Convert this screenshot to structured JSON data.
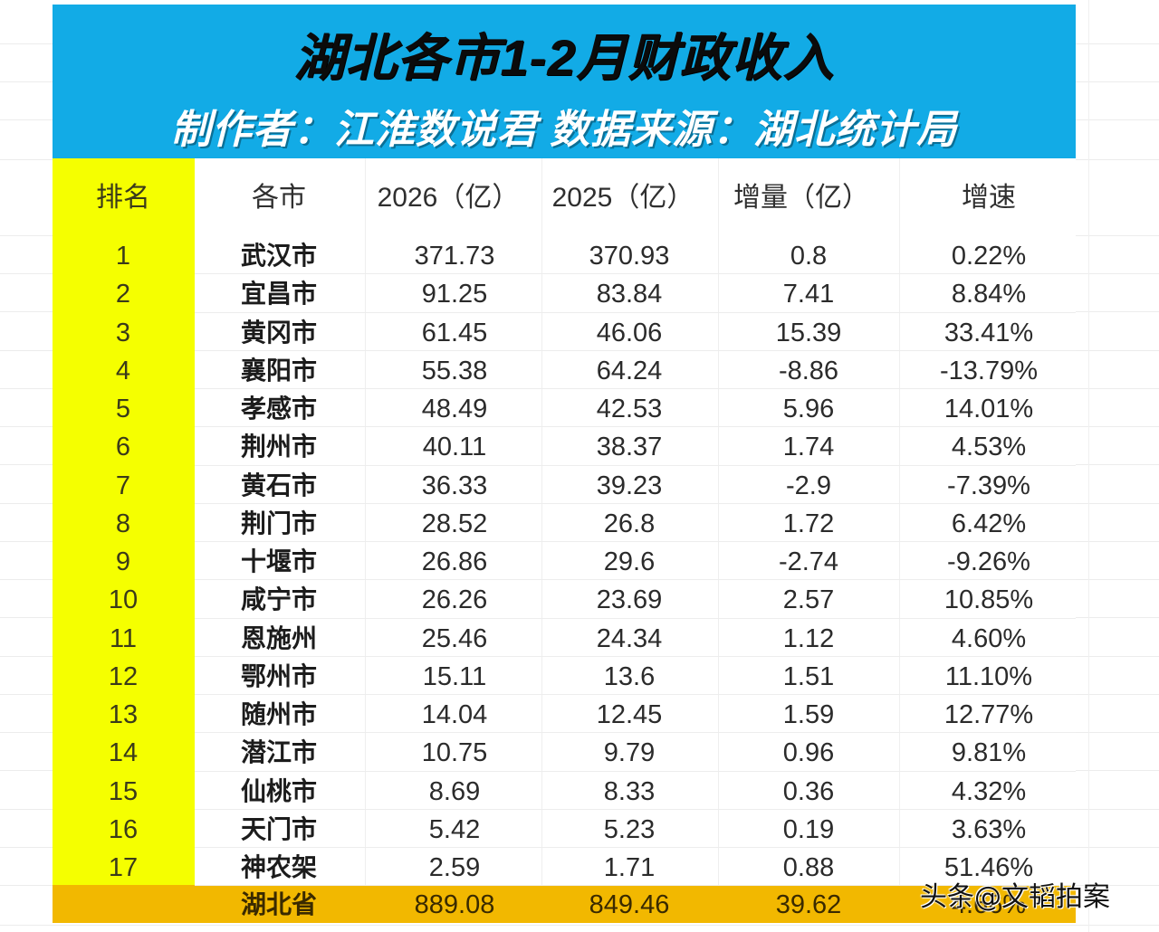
{
  "header": {
    "title": "湖北各市1-2月财政收入",
    "subtitle": "制作者：江淮数说君  数据来源：湖北统计局"
  },
  "table": {
    "columns": [
      "排名",
      "各市",
      "2026（亿）",
      "2025（亿）",
      "增量（亿）",
      "增速"
    ],
    "rows": [
      {
        "rank": "1",
        "city": "武汉市",
        "y2026": "371.73",
        "y2025": "370.93",
        "delta": "0.8",
        "rate": "0.22%"
      },
      {
        "rank": "2",
        "city": "宜昌市",
        "y2026": "91.25",
        "y2025": "83.84",
        "delta": "7.41",
        "rate": "8.84%"
      },
      {
        "rank": "3",
        "city": "黄冈市",
        "y2026": "61.45",
        "y2025": "46.06",
        "delta": "15.39",
        "rate": "33.41%"
      },
      {
        "rank": "4",
        "city": "襄阳市",
        "y2026": "55.38",
        "y2025": "64.24",
        "delta": "-8.86",
        "rate": "-13.79%"
      },
      {
        "rank": "5",
        "city": "孝感市",
        "y2026": "48.49",
        "y2025": "42.53",
        "delta": "5.96",
        "rate": "14.01%"
      },
      {
        "rank": "6",
        "city": "荆州市",
        "y2026": "40.11",
        "y2025": "38.37",
        "delta": "1.74",
        "rate": "4.53%"
      },
      {
        "rank": "7",
        "city": "黄石市",
        "y2026": "36.33",
        "y2025": "39.23",
        "delta": "-2.9",
        "rate": "-7.39%"
      },
      {
        "rank": "8",
        "city": "荆门市",
        "y2026": "28.52",
        "y2025": "26.8",
        "delta": "1.72",
        "rate": "6.42%"
      },
      {
        "rank": "9",
        "city": "十堰市",
        "y2026": "26.86",
        "y2025": "29.6",
        "delta": "-2.74",
        "rate": "-9.26%"
      },
      {
        "rank": "10",
        "city": "咸宁市",
        "y2026": "26.26",
        "y2025": "23.69",
        "delta": "2.57",
        "rate": "10.85%"
      },
      {
        "rank": "11",
        "city": "恩施州",
        "y2026": "25.46",
        "y2025": "24.34",
        "delta": "1.12",
        "rate": "4.60%"
      },
      {
        "rank": "12",
        "city": "鄂州市",
        "y2026": "15.11",
        "y2025": "13.6",
        "delta": "1.51",
        "rate": "11.10%"
      },
      {
        "rank": "13",
        "city": "随州市",
        "y2026": "14.04",
        "y2025": "12.45",
        "delta": "1.59",
        "rate": "12.77%"
      },
      {
        "rank": "14",
        "city": "潜江市",
        "y2026": "10.75",
        "y2025": "9.79",
        "delta": "0.96",
        "rate": "9.81%"
      },
      {
        "rank": "15",
        "city": "仙桃市",
        "y2026": "8.69",
        "y2025": "8.33",
        "delta": "0.36",
        "rate": "4.32%"
      },
      {
        "rank": "16",
        "city": "天门市",
        "y2026": "5.42",
        "y2025": "5.23",
        "delta": "0.19",
        "rate": "3.63%"
      },
      {
        "rank": "17",
        "city": "神农架",
        "y2026": "2.59",
        "y2025": "1.71",
        "delta": "0.88",
        "rate": "51.46%"
      }
    ],
    "total": {
      "rank": "",
      "city": "湖北省",
      "y2026": "889.08",
      "y2025": "849.46",
      "delta": "39.62",
      "rate": "4.66%"
    }
  },
  "watermark": "头条@文韬拍案",
  "colors": {
    "banner": "#12abe6",
    "rank_column": "#f5ff00",
    "total_row": "#f2b800"
  }
}
